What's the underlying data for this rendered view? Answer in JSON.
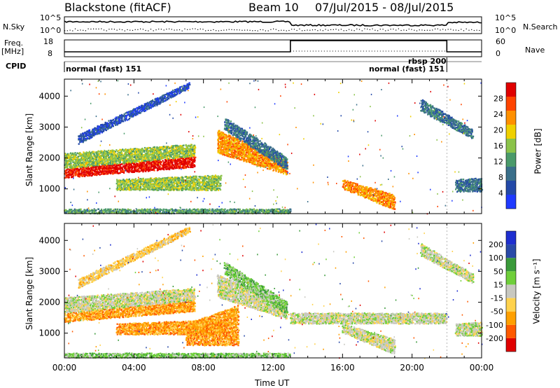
{
  "header": {
    "station": "Blackstone (fitACF)",
    "beam": "Beam 10",
    "date_range": "07/Jul/2015 - 08/Jul/2015"
  },
  "left_labels": {
    "nsky": "N.Sky",
    "freq": "Freq.",
    "freq_unit": "[MHz]",
    "cpid": "CPID"
  },
  "right_labels": {
    "nsearch": "N.Search",
    "nave": "Nave"
  },
  "noise_panel": {
    "left_ticks": [
      "10^5",
      "10^0"
    ],
    "right_ticks": [
      "10^5",
      "10^0"
    ]
  },
  "freq_panel": {
    "left_ticks": [
      "18",
      "8"
    ],
    "right_ticks": [
      "60",
      "0"
    ]
  },
  "cpid_panel": {
    "entries": [
      {
        "label": "normal (fast) 151",
        "start": "00:00"
      },
      {
        "label": "normal (fast) 151",
        "start": "22:00"
      },
      {
        "label": "rbsp 200",
        "start": "22:00"
      }
    ]
  },
  "colors": {
    "power": [
      "#1f3aff",
      "#2349a8",
      "#3a6f8a",
      "#4a9a6a",
      "#8bc34a",
      "#f0d000",
      "#ff9000",
      "#ff4400",
      "#e00000"
    ],
    "velocity": [
      "#e00000",
      "#ff5a00",
      "#ffa000",
      "#ffd24d",
      "#c8c8c0",
      "#6fcf3a",
      "#3a9a3a",
      "#2a4aa8",
      "#1f2fd0"
    ]
  },
  "chart_data": [
    {
      "type": "heatmap",
      "name": "power",
      "ylabel": "Slant Range [km]",
      "yticks": [
        1000,
        2000,
        3000,
        4000
      ],
      "ylim": [
        200,
        4550
      ],
      "xlim": [
        "00:00",
        "24:00"
      ],
      "colorbar": {
        "label": "Power [dB]",
        "ticks": [
          "4",
          "8",
          "12",
          "16",
          "20",
          "24",
          "28"
        ]
      },
      "bands": [
        {
          "t0": 0.0,
          "t1": 7.5,
          "r0": 1350,
          "r1": 1650,
          "r0_end": 1700,
          "r1_end": 2050,
          "level": 8
        },
        {
          "t0": 0.0,
          "t1": 7.5,
          "r0": 1650,
          "r1": 2150,
          "r0_end": 2050,
          "r1_end": 2450,
          "level": 4
        },
        {
          "t0": 0.8,
          "t1": 7.2,
          "r0": 2450,
          "r1": 2750,
          "r0_end": 4250,
          "r1_end": 4450,
          "level": 1
        },
        {
          "t0": 3.0,
          "t1": 9.0,
          "r0": 950,
          "r1": 1300,
          "r0_end": 950,
          "r1_end": 1450,
          "level": 4
        },
        {
          "t0": 8.8,
          "t1": 12.8,
          "r0": 2150,
          "r1": 2900,
          "r0_end": 1450,
          "r1_end": 1900,
          "level": 6
        },
        {
          "t0": 9.2,
          "t1": 12.8,
          "r0": 2900,
          "r1": 3300,
          "r0_end": 1600,
          "r1_end": 2000,
          "level": 2
        },
        {
          "t0": 16.0,
          "t1": 19.0,
          "r0": 1000,
          "r1": 1300,
          "r0_end": 300,
          "r1_end": 800,
          "level": 6
        },
        {
          "t0": 20.5,
          "t1": 23.5,
          "r0": 3500,
          "r1": 3900,
          "r0_end": 2600,
          "r1_end": 2900,
          "level": 2
        },
        {
          "t0": 22.5,
          "t1": 24.0,
          "r0": 900,
          "r1": 1300,
          "r0_end": 900,
          "r1_end": 1350,
          "level": 2
        },
        {
          "t0": 0.0,
          "t1": 13.0,
          "r0": 200,
          "r1": 350,
          "r0_end": 200,
          "r1_end": 350,
          "level": 3
        }
      ]
    },
    {
      "type": "heatmap",
      "name": "velocity",
      "ylabel": "Slant Range [km]",
      "yticks": [
        1000,
        2000,
        3000,
        4000
      ],
      "ylim": [
        200,
        4550
      ],
      "xlim": [
        "00:00",
        "24:00"
      ],
      "colorbar": {
        "label": "Velocity [m s⁻¹]",
        "ticks": [
          "-200",
          "-100",
          "-50",
          "-15",
          "15",
          "50",
          "100",
          "200"
        ]
      },
      "bands": [
        {
          "t0": 0.0,
          "t1": 7.5,
          "r0": 1350,
          "r1": 1650,
          "r0_end": 1700,
          "r1_end": 2050,
          "level": 2
        },
        {
          "t0": 0.0,
          "t1": 7.5,
          "r0": 1650,
          "r1": 2150,
          "r0_end": 2050,
          "r1_end": 2450,
          "level": 4
        },
        {
          "t0": 0.8,
          "t1": 7.2,
          "r0": 2450,
          "r1": 2750,
          "r0_end": 4250,
          "r1_end": 4450,
          "level": 3
        },
        {
          "t0": 3.0,
          "t1": 9.0,
          "r0": 950,
          "r1": 1300,
          "r0_end": 950,
          "r1_end": 1450,
          "level": 2
        },
        {
          "t0": 7.0,
          "t1": 10.0,
          "r0": 600,
          "r1": 1300,
          "r0_end": 600,
          "r1_end": 1900,
          "level": 2
        },
        {
          "t0": 8.8,
          "t1": 12.8,
          "r0": 2150,
          "r1": 2900,
          "r0_end": 1450,
          "r1_end": 1900,
          "level": 4
        },
        {
          "t0": 9.2,
          "t1": 12.8,
          "r0": 2900,
          "r1": 3300,
          "r0_end": 1600,
          "r1_end": 2000,
          "level": 5
        },
        {
          "t0": 13.0,
          "t1": 22.0,
          "r0": 1300,
          "r1": 1650,
          "r0_end": 1300,
          "r1_end": 1650,
          "level": 4
        },
        {
          "t0": 16.0,
          "t1": 19.0,
          "r0": 1000,
          "r1": 1300,
          "r0_end": 300,
          "r1_end": 800,
          "level": 4
        },
        {
          "t0": 20.5,
          "t1": 23.5,
          "r0": 3500,
          "r1": 3900,
          "r0_end": 2600,
          "r1_end": 2900,
          "level": 4
        },
        {
          "t0": 22.5,
          "t1": 24.0,
          "r0": 900,
          "r1": 1300,
          "r0_end": 900,
          "r1_end": 1350,
          "level": 4
        },
        {
          "t0": 0.0,
          "t1": 13.0,
          "r0": 200,
          "r1": 350,
          "r0_end": 200,
          "r1_end": 350,
          "level": 5
        }
      ]
    }
  ],
  "time_axis": {
    "label": "Time UT",
    "ticks": [
      "00:00",
      "04:00",
      "08:00",
      "12:00",
      "16:00",
      "20:00",
      "00:00"
    ]
  }
}
